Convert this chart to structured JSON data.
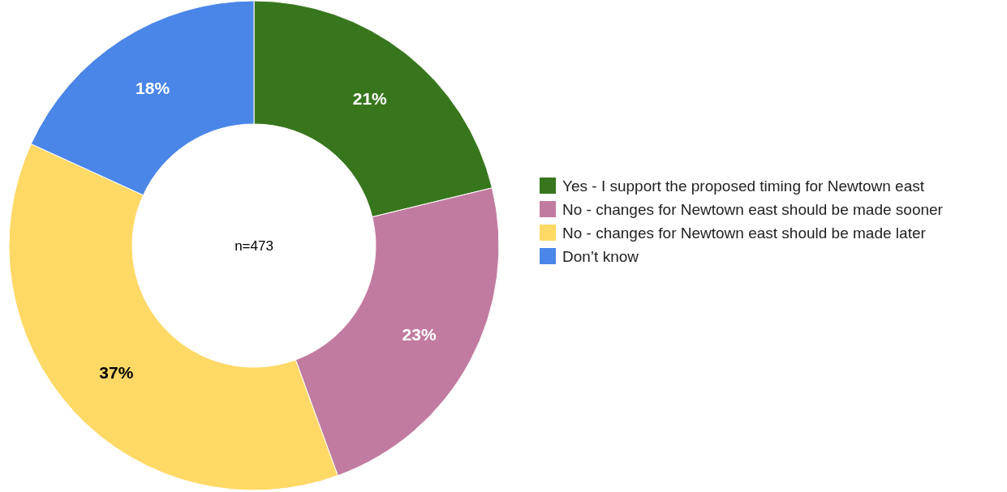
{
  "chart_data": {
    "type": "donut",
    "categories": [
      "Yes - I support the proposed timing for Newtown east",
      "No - changes for Newtown east should be made sooner",
      "No - changes for Newtown east should be made later",
      "Don’t know"
    ],
    "values": [
      21,
      23,
      37,
      18
    ],
    "colors": [
      "#38761d",
      "#c27ba0",
      "#ffd966",
      "#4a86e8"
    ],
    "annotations": [
      "n=473"
    ],
    "value_labels": [
      "21%",
      "23%",
      "37%",
      "18%"
    ],
    "legend": "right"
  }
}
